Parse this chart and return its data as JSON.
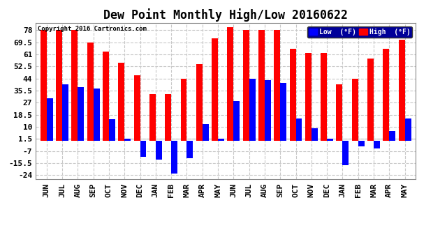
{
  "title": "Dew Point Monthly High/Low 20160622",
  "copyright": "Copyright 2016 Cartronics.com",
  "categories": [
    "JUN",
    "JUL",
    "AUG",
    "SEP",
    "OCT",
    "NOV",
    "DEC",
    "JAN",
    "FEB",
    "MAR",
    "APR",
    "MAY",
    "JUN",
    "JUL",
    "AUG",
    "SEP",
    "OCT",
    "NOV",
    "DEC",
    "JAN",
    "FEB",
    "MAR",
    "APR",
    "MAY"
  ],
  "high_values": [
    78.0,
    78.0,
    78.0,
    69.5,
    63.0,
    55.0,
    46.0,
    33.0,
    33.0,
    44.0,
    54.0,
    72.0,
    80.0,
    78.0,
    78.0,
    78.0,
    65.0,
    62.0,
    62.0,
    40.0,
    44.0,
    58.0,
    65.0,
    71.0
  ],
  "low_values": [
    30.0,
    40.0,
    38.0,
    37.0,
    15.5,
    1.5,
    -11.0,
    -13.0,
    -23.0,
    -12.0,
    12.0,
    1.5,
    28.0,
    44.0,
    43.0,
    41.0,
    16.0,
    9.0,
    1.5,
    -17.0,
    -4.0,
    -5.0,
    7.0,
    16.0
  ],
  "high_color": "#ff0000",
  "low_color": "#0000ff",
  "bg_color": "#ffffff",
  "plot_bg_color": "#ffffff",
  "grid_color": "#c8c8c8",
  "yticks": [
    78.0,
    69.5,
    61.0,
    52.5,
    44.0,
    35.5,
    27.0,
    18.5,
    10.0,
    1.5,
    -7.0,
    -15.5,
    -24.0
  ],
  "ylim": [
    -27.0,
    83.0
  ],
  "title_fontsize": 12,
  "tick_fontsize": 8,
  "bar_width": 0.4,
  "legend_bg": "#000099",
  "legend_text_color": "#ffffff"
}
